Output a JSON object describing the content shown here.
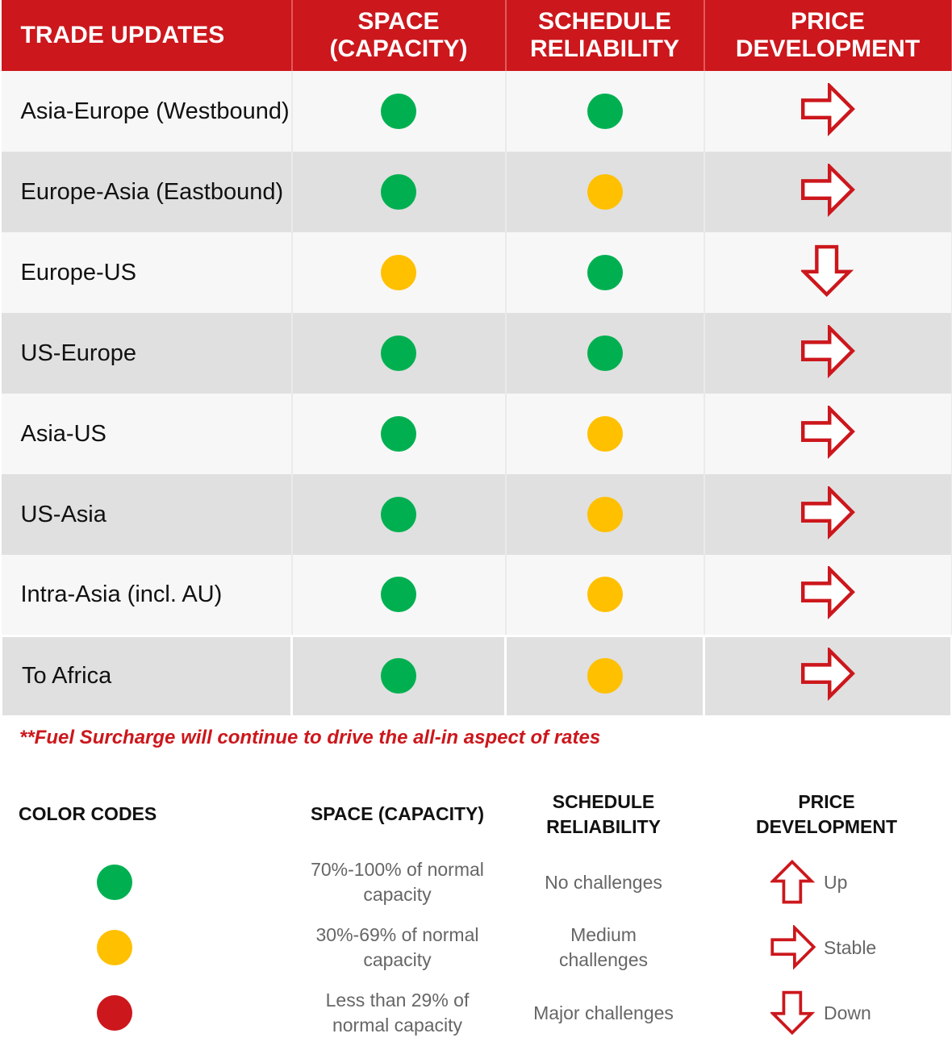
{
  "colors": {
    "green": "#00b050",
    "yellow": "#ffc000",
    "red": "#cc171c"
  },
  "header": {
    "trade": "TRADE UPDATES",
    "space": "SPACE (CAPACITY)",
    "schedule": "SCHEDULE RELIABILITY",
    "price": "PRICE DEVELOPMENT"
  },
  "rows": [
    {
      "trade": "Asia-Europe (Westbound)",
      "space": "green",
      "schedule": "green",
      "price": "stable"
    },
    {
      "trade": "Europe-Asia (Eastbound)",
      "space": "green",
      "schedule": "yellow",
      "price": "stable"
    },
    {
      "trade": "Europe-US",
      "space": "yellow",
      "schedule": "green",
      "price": "down"
    },
    {
      "trade": "US-Europe",
      "space": "green",
      "schedule": "green",
      "price": "stable"
    },
    {
      "trade": "Asia-US",
      "space": "green",
      "schedule": "yellow",
      "price": "stable"
    },
    {
      "trade": "US-Asia",
      "space": "green",
      "schedule": "yellow",
      "price": "stable"
    },
    {
      "trade": "Intra-Asia (incl. AU)",
      "space": "green",
      "schedule": "yellow",
      "price": "stable"
    },
    {
      "trade": "To Africa",
      "space": "green",
      "schedule": "yellow",
      "price": "stable"
    }
  ],
  "footnote": "**Fuel Surcharge will continue to drive the all-in aspect of rates",
  "legend": {
    "title": "COLOR CODES",
    "space_header": "SPACE (CAPACITY)",
    "schedule_header": "SCHEDULE RELIABILITY",
    "price_header": "PRICE DEVELOPMENT",
    "items": [
      {
        "color": "green",
        "space": "70%-100% of normal capacity",
        "schedule": "No challenges",
        "price": "Up",
        "arrow": "up"
      },
      {
        "color": "yellow",
        "space": "30%-69% of normal capacity",
        "schedule": "Medium challenges",
        "price": "Stable",
        "arrow": "stable"
      },
      {
        "color": "red",
        "space": "Less than 29% of normal capacity",
        "schedule": "Major challenges",
        "price": "Down",
        "arrow": "down"
      }
    ]
  }
}
